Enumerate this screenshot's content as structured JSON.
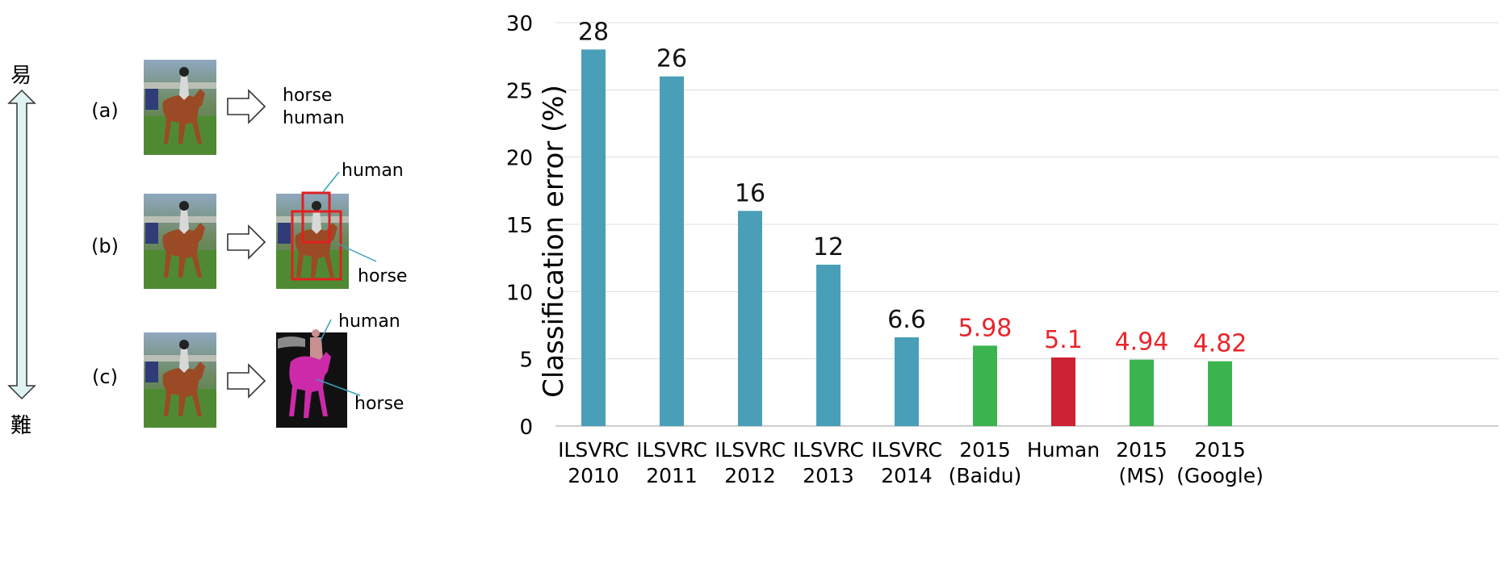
{
  "tasks": {
    "easy_label": "易",
    "hard_label": "難",
    "rows": [
      {
        "label": "(a)",
        "outputs": [
          "horse",
          "human"
        ]
      },
      {
        "label": "(b)",
        "callouts": [
          "human",
          "horse"
        ]
      },
      {
        "label": "(c)",
        "callouts": [
          "human",
          "horse"
        ]
      }
    ]
  },
  "chart_data": {
    "type": "bar",
    "ylabel": "Classification error (%)",
    "ylim": [
      0,
      30
    ],
    "yticks": [
      0,
      5,
      10,
      15,
      20,
      25,
      30
    ],
    "grid": true,
    "categories": [
      [
        "ILSVRC",
        "2010"
      ],
      [
        "ILSVRC",
        "2011"
      ],
      [
        "ILSVRC",
        "2012"
      ],
      [
        "ILSVRC",
        "2013"
      ],
      [
        "ILSVRC",
        "2014"
      ],
      [
        "2015",
        "(Baidu)"
      ],
      [
        "Human",
        ""
      ],
      [
        "2015",
        "(MS)"
      ],
      [
        "2015",
        "(Google)"
      ]
    ],
    "values": [
      28,
      26,
      16,
      12,
      6.6,
      5.98,
      5.1,
      4.94,
      4.82
    ],
    "value_labels": [
      "28",
      "26",
      "16",
      "12",
      "6.6",
      "5.98",
      "5.1",
      "4.94",
      "4.82"
    ],
    "bar_colors": [
      "#4a9fb8",
      "#4a9fb8",
      "#4a9fb8",
      "#4a9fb8",
      "#4a9fb8",
      "#3bb44f",
      "#cc2233",
      "#3bb44f",
      "#3bb44f"
    ],
    "label_colors": [
      "#111111",
      "#111111",
      "#111111",
      "#111111",
      "#111111",
      "#e8252b",
      "#e8252b",
      "#e8252b",
      "#e8252b"
    ]
  }
}
